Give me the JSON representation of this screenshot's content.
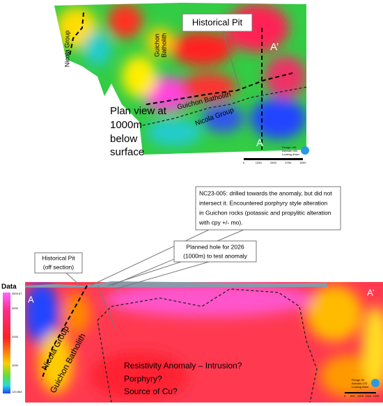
{
  "plan_view": {
    "pit_label": "Historical Pit",
    "a_prime": "A’",
    "a": "A",
    "nicola_group_vertical": "Nicola Group",
    "guichon_vertical": [
      "Guichon",
      "Batholith"
    ],
    "guichon_diagonal": "Guichon Batholith",
    "nicola_diagonal": "Nicola Group",
    "caption": [
      "Plan view at",
      "1000m",
      "below",
      "surface"
    ],
    "orientation": [
      "Plunge +90",
      "Azimuth 000",
      "Looking down"
    ],
    "scale_bar": [
      "0",
      "1250",
      "2500",
      "3750",
      "5000"
    ]
  },
  "section": {
    "callout_drill": [
      "NC23-005: drilled towards the anomaly, but did not",
      "intersect it. Encountered porphyry style alteration",
      "in Guichon rocks (potassic and propylitic alteration",
      "with cpy +/- mo)."
    ],
    "callout_pit": [
      "Historical Pit",
      "(off section)"
    ],
    "callout_planned": [
      "Planned hole for 2026",
      "(1000m) to test anomaly"
    ],
    "legend_title": "Data",
    "legend_ticks": [
      "3503.67",
      "3000",
      "2000",
      "1000",
      "120.563"
    ],
    "a": "A",
    "a_prime": "A’",
    "nicola_group": "Nicola Group",
    "guichon_batholith": "Guichon Batholith",
    "anomaly": [
      "Resistivity Anomaly – Intrusion?",
      "Porphyry?",
      "Source of Cu?"
    ],
    "orientation": [
      "Plunge 00",
      "Azimuth 270",
      "Looking West"
    ],
    "scale_bar": [
      "0",
      "500",
      "1000",
      "1500",
      "2000"
    ]
  }
}
